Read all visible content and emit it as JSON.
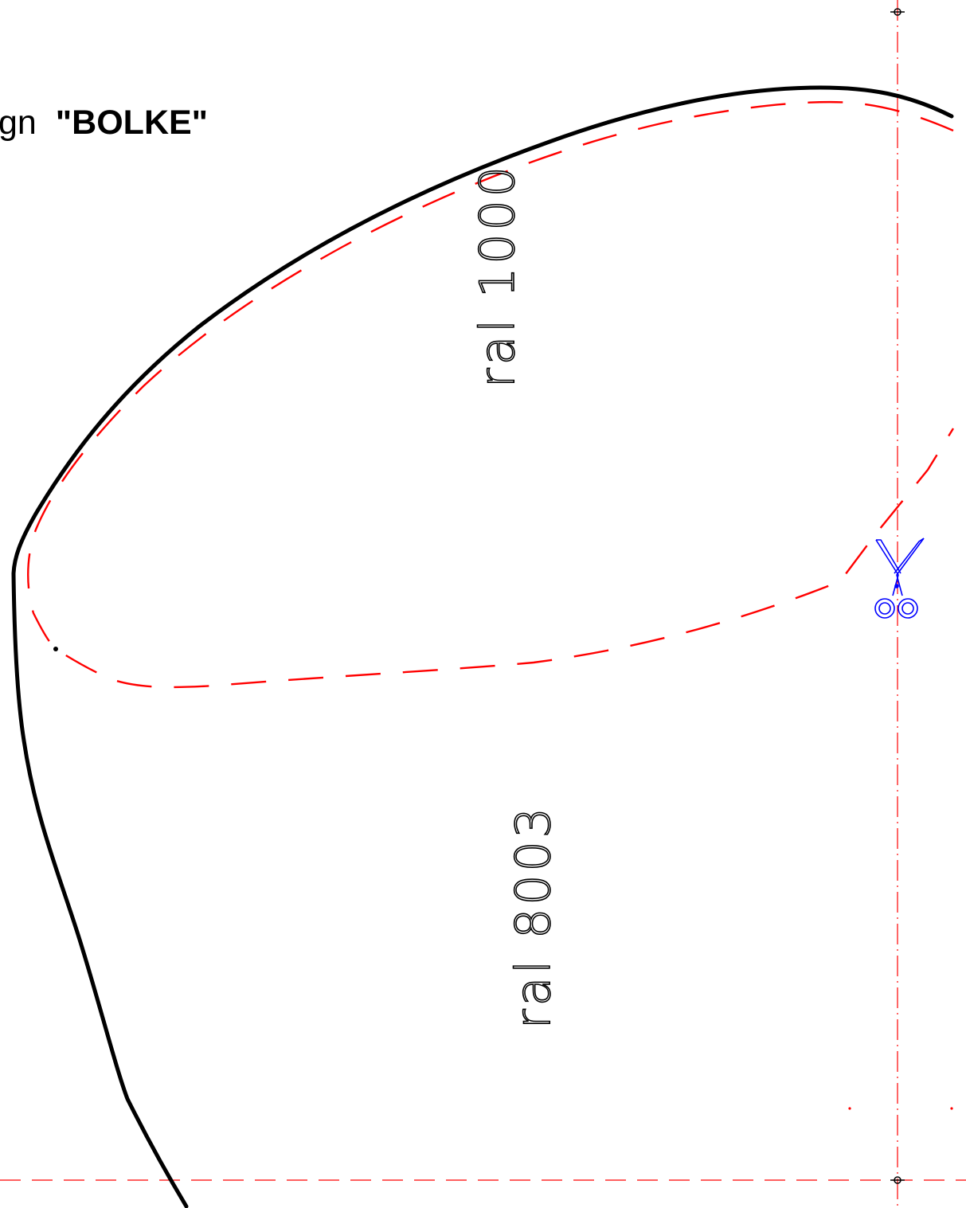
{
  "title": {
    "prefix": "gn",
    "name": "\"BOLKE\""
  },
  "panels": [
    {
      "id": "upper-panel",
      "label": "ral 1000"
    },
    {
      "id": "lower-panel",
      "label": "ral 8003"
    }
  ],
  "colors": {
    "outline": "#000000",
    "seam_line": "#ff0000",
    "guide_line": "#ff0000",
    "scissors": "#0000ff",
    "background": "#ffffff"
  },
  "icons": {
    "scissors": "scissors-icon"
  }
}
